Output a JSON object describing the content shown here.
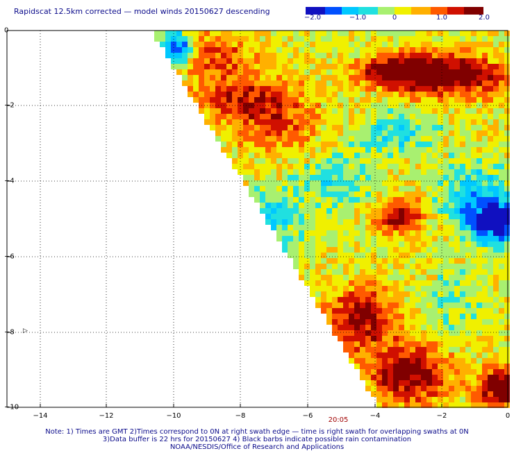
{
  "title": "Rapidscat 12.5km corrected — model winds 20150627 descending",
  "colorbar": {
    "ticks": [
      "−2.0",
      "−1.0",
      "0",
      "1.0",
      "2.0"
    ],
    "min": -2.0,
    "max": 2.0,
    "colors": [
      "#1010c0",
      "#0050ff",
      "#00c8ff",
      "#20e0e0",
      "#a8f070",
      "#f0f000",
      "#ffb000",
      "#ff5a00",
      "#d01000",
      "#800000"
    ]
  },
  "axes": {
    "x_ticks": [
      "−14",
      "−12",
      "−10",
      "−8",
      "−6",
      "−4",
      "−2",
      "0"
    ],
    "y_ticks": [
      "0",
      "−2",
      "−4",
      "−6",
      "−8",
      "−10"
    ],
    "xlim": [
      -15,
      0
    ],
    "ylim": [
      -10,
      0
    ]
  },
  "time_label": "20:05",
  "notes": [
    "Note: 1) Times are GMT 2)Times correspond to 0N at right swath edge — time is right swath for overlapping swaths at 0N",
    "3)Data buffer is 22 hrs for 20150627 4) Black barbs indicate possible rain contamination",
    "NOAA/NESDIS/Office of Research and Applications"
  ]
}
